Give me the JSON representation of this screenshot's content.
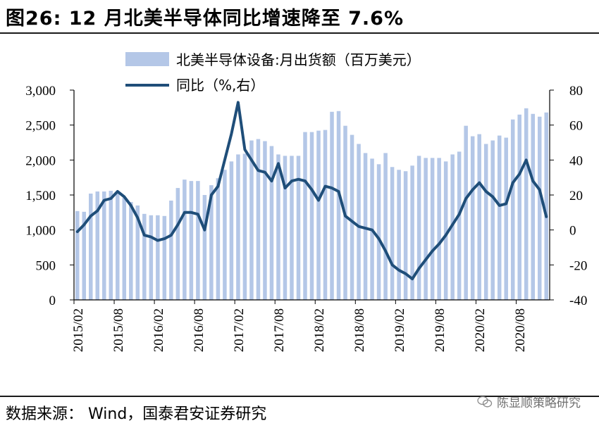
{
  "title": "图26: 12 月北美半导体同比增速降至 7.6%",
  "source": "数据来源： Wind，国泰君安证券研究",
  "watermark": "陈显顺策略研究",
  "colors": {
    "bars": "#b4c7e7",
    "line": "#1f4e79",
    "axis": "#000000"
  },
  "chart_data": {
    "type": "bar+line",
    "legend_position": "top",
    "grid": false,
    "x_tick_labels": [
      "2015/02",
      "2015/08",
      "2016/02",
      "2016/08",
      "2017/02",
      "2017/08",
      "2018/02",
      "2018/08",
      "2019/02",
      "2019/08",
      "2020/02",
      "2020/08"
    ],
    "y_left": {
      "ticks": [
        "0",
        "500",
        "1,000",
        "1,500",
        "2,000",
        "2,500",
        "3,000"
      ],
      "lim": [
        0,
        3000
      ]
    },
    "y_right": {
      "ticks": [
        "-40",
        "-20",
        "0",
        "20",
        "40",
        "60",
        "80"
      ],
      "lim": [
        -40,
        80
      ]
    },
    "months": [
      "2015/02",
      "2015/03",
      "2015/04",
      "2015/05",
      "2015/06",
      "2015/07",
      "2015/08",
      "2015/09",
      "2015/10",
      "2015/11",
      "2015/12",
      "2016/01",
      "2016/02",
      "2016/03",
      "2016/04",
      "2016/05",
      "2016/06",
      "2016/07",
      "2016/08",
      "2016/09",
      "2016/10",
      "2016/11",
      "2016/12",
      "2017/01",
      "2017/02",
      "2017/03",
      "2017/04",
      "2017/05",
      "2017/06",
      "2017/07",
      "2017/08",
      "2017/09",
      "2017/10",
      "2017/11",
      "2017/12",
      "2018/01",
      "2018/02",
      "2018/03",
      "2018/04",
      "2018/05",
      "2018/06",
      "2018/07",
      "2018/08",
      "2018/09",
      "2018/10",
      "2018/11",
      "2018/12",
      "2019/01",
      "2019/02",
      "2019/03",
      "2019/04",
      "2019/05",
      "2019/06",
      "2019/07",
      "2019/08",
      "2019/09",
      "2019/10",
      "2019/11",
      "2019/12",
      "2020/01",
      "2020/02",
      "2020/03",
      "2020/04",
      "2020/05",
      "2020/06",
      "2020/07",
      "2020/08",
      "2020/09",
      "2020/10",
      "2020/11",
      "2020/12"
    ],
    "series": [
      {
        "name": "北美半导体设备:月出货额（百万美元）",
        "type": "bar",
        "axis": "left",
        "values": [
          1270,
          1260,
          1520,
          1550,
          1550,
          1560,
          1540,
          1460,
          1400,
          1350,
          1230,
          1210,
          1210,
          1200,
          1420,
          1600,
          1720,
          1700,
          1700,
          1500,
          1640,
          1740,
          1860,
          1980,
          2080,
          2090,
          2280,
          2300,
          2270,
          2200,
          2080,
          2060,
          2060,
          2060,
          2400,
          2400,
          2420,
          2430,
          2690,
          2700,
          2490,
          2360,
          2230,
          2100,
          2020,
          1940,
          2100,
          1900,
          1860,
          1840,
          1920,
          2060,
          2030,
          2030,
          2030,
          1980,
          2080,
          2120,
          2490,
          2340,
          2370,
          2230,
          2280,
          2350,
          2320,
          2580,
          2650,
          2740,
          2660,
          2620,
          2680
        ]
      },
      {
        "name": "同比（%,右）",
        "type": "line",
        "axis": "right",
        "values": [
          -1,
          3,
          8,
          11,
          17,
          18,
          22,
          19,
          14,
          7,
          -3,
          -4,
          -6,
          -5,
          -3,
          3,
          10,
          10,
          9,
          0,
          20,
          25,
          40,
          55,
          73,
          46,
          40,
          34,
          33,
          28,
          38,
          24,
          28,
          29,
          28,
          23,
          17,
          25,
          24,
          22,
          8,
          5,
          2,
          1,
          0,
          -5,
          -12,
          -20,
          -23,
          -25,
          -28,
          -22,
          -17,
          -12,
          -8,
          -3,
          3,
          9,
          18,
          23,
          27,
          22,
          19,
          14,
          15,
          27,
          32,
          40,
          28,
          23,
          7.6
        ]
      }
    ]
  }
}
